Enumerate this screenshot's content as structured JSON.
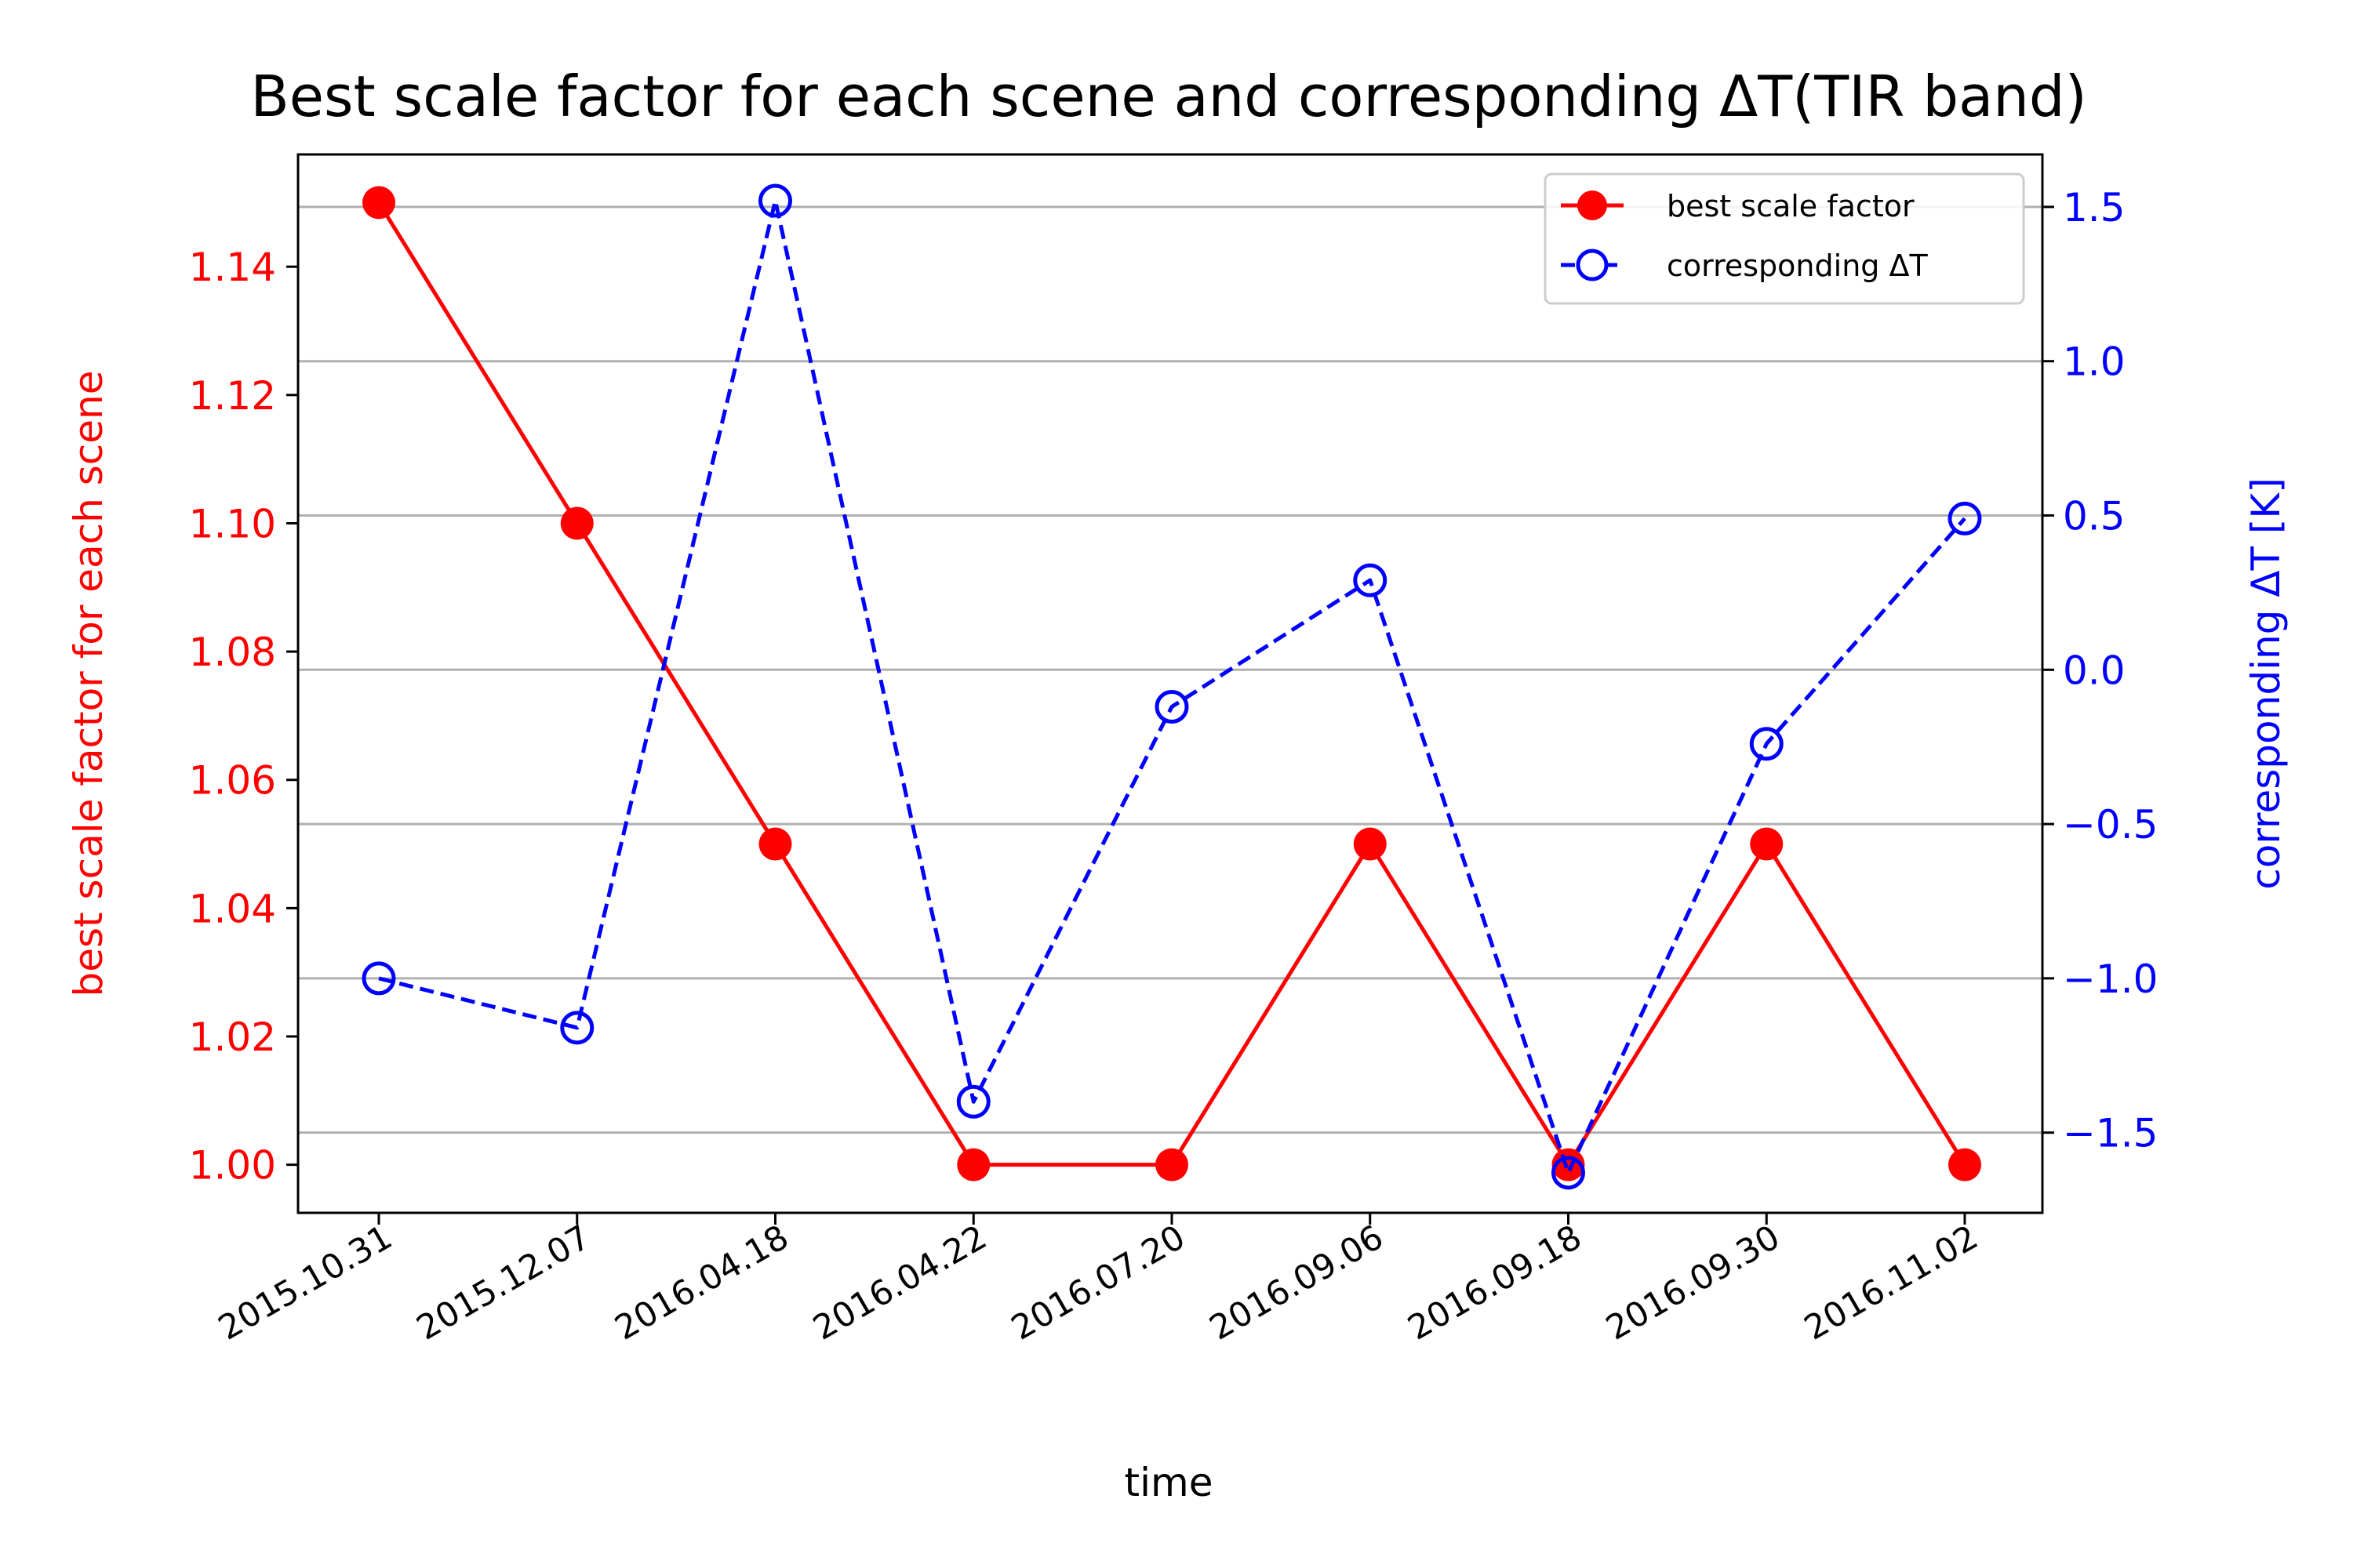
{
  "chart_data": {
    "type": "line",
    "title": "Best scale factor for each scene and corresponding ΔT(TIR band)",
    "xlabel": "time",
    "categories": [
      "2015.10.31",
      "2015.12.07",
      "2016.04.18",
      "2016.04.22",
      "2016.07.20",
      "2016.09.06",
      "2016.09.18",
      "2016.09.30",
      "2016.11.02"
    ],
    "y_left": {
      "label": "best scale factor for each scene",
      "range": [
        0.9925,
        1.1575
      ],
      "ticks": [
        "1.00",
        "1.02",
        "1.04",
        "1.06",
        "1.08",
        "1.10",
        "1.12",
        "1.14"
      ],
      "tick_values": [
        1.0,
        1.02,
        1.04,
        1.06,
        1.08,
        1.1,
        1.12,
        1.14
      ],
      "color": "#ff0000"
    },
    "y_right": {
      "label": "corresponding ΔT [K]",
      "range": [
        -1.76,
        1.67
      ],
      "ticks": [
        "−1.5",
        "−1.0",
        "−0.5",
        "0.0",
        "0.5",
        "1.0",
        "1.5"
      ],
      "tick_values": [
        -1.5,
        -1.0,
        -0.5,
        0.0,
        0.5,
        1.0,
        1.5
      ],
      "color": "#0000ff"
    },
    "series": [
      {
        "name": "best scale factor",
        "axis": "left",
        "color": "#ff0000",
        "line_style": "solid",
        "marker": "filled-circle",
        "values": [
          1.15,
          1.1,
          1.05,
          1.0,
          1.0,
          1.05,
          1.0,
          1.05,
          1.0
        ]
      },
      {
        "name": "corresponding ΔT",
        "axis": "right",
        "color": "#0000ff",
        "line_style": "dashed",
        "marker": "open-circle",
        "values": [
          -1.0,
          -1.16,
          1.52,
          -1.4,
          -0.12,
          0.29,
          -1.63,
          -0.24,
          0.49
        ]
      }
    ],
    "grid": "horizontal, right axis",
    "legend_position": "top-right"
  }
}
